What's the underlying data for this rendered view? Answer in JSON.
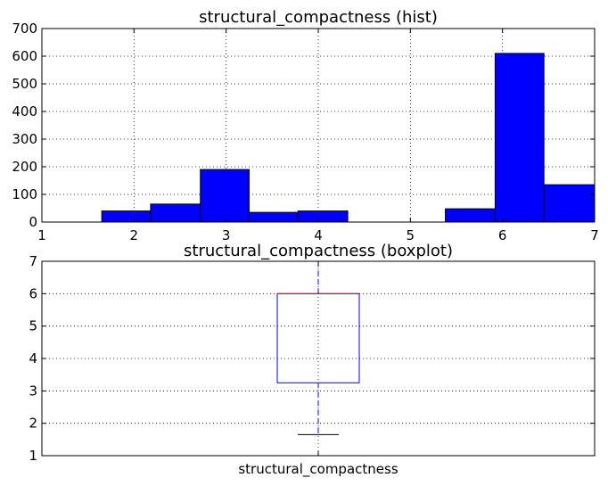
{
  "chart_data": [
    {
      "type": "bar",
      "title": "structural_compactness (hist)",
      "xlabel": "",
      "ylabel": "",
      "xlim": [
        1,
        7
      ],
      "ylim": [
        0,
        700
      ],
      "xticks": [
        "1",
        "2",
        "3",
        "4",
        "5",
        "6",
        "7"
      ],
      "yticks": [
        "0",
        "100",
        "200",
        "300",
        "400",
        "500",
        "600",
        "700"
      ],
      "grid": true,
      "bar_color": "#0000ff",
      "bins": [
        {
          "x0": 1.65,
          "x1": 2.18,
          "value": 40
        },
        {
          "x0": 2.18,
          "x1": 2.72,
          "value": 65
        },
        {
          "x0": 2.72,
          "x1": 3.25,
          "value": 190
        },
        {
          "x0": 3.25,
          "x1": 3.78,
          "value": 35
        },
        {
          "x0": 3.78,
          "x1": 4.32,
          "value": 40
        },
        {
          "x0": 4.32,
          "x1": 4.85,
          "value": 0
        },
        {
          "x0": 4.85,
          "x1": 5.38,
          "value": 0
        },
        {
          "x0": 5.38,
          "x1": 5.92,
          "value": 48
        },
        {
          "x0": 5.92,
          "x1": 6.45,
          "value": 610
        },
        {
          "x0": 6.45,
          "x1": 7.0,
          "value": 135
        }
      ]
    },
    {
      "type": "box",
      "title": "structural_compactness (boxplot)",
      "xlabel": "",
      "ylabel": "",
      "ylim": [
        1,
        7
      ],
      "yticks": [
        "1",
        "2",
        "3",
        "4",
        "5",
        "6",
        "7"
      ],
      "categories": [
        "structural_compactness"
      ],
      "grid": true,
      "box": {
        "whisker_low": 1.65,
        "q1": 3.25,
        "median": 6.0,
        "q3": 6.0,
        "whisker_high": 7.0
      },
      "box_color": "#0000ff",
      "median_color": "#ff0000",
      "cap_color": "#000000"
    }
  ]
}
